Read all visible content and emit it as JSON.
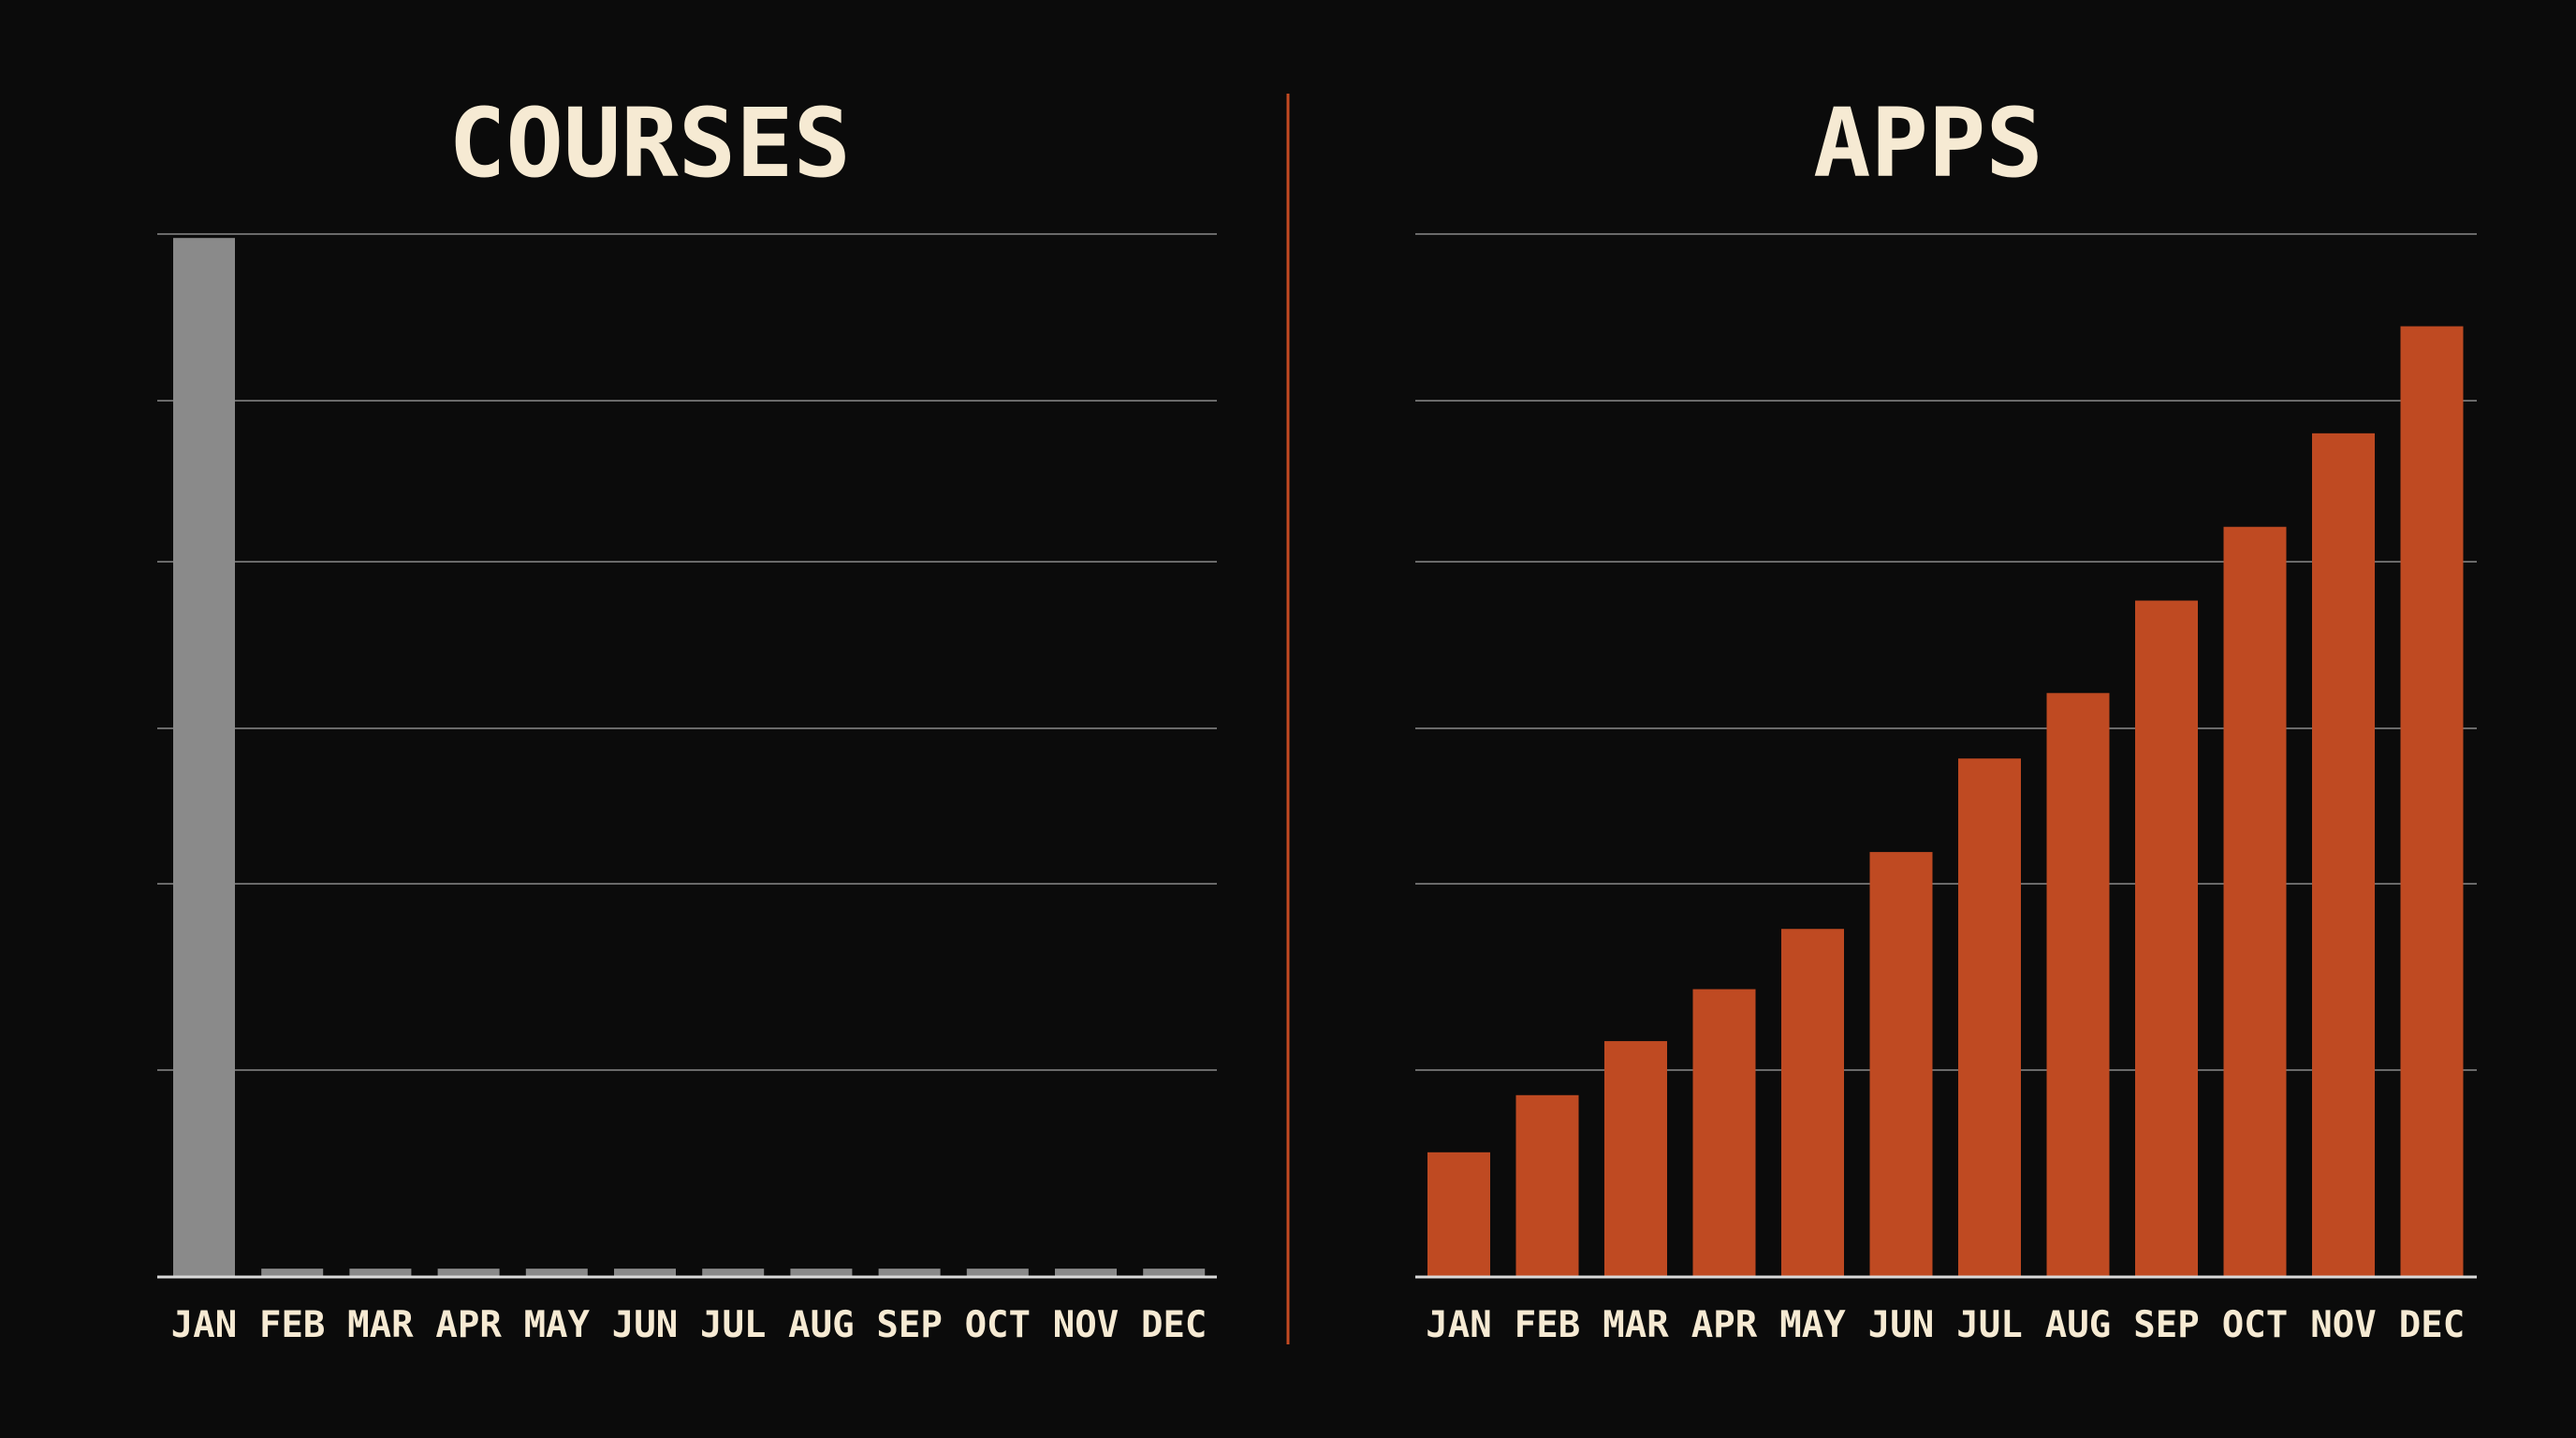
{
  "colors": {
    "background": "#0b0b0b",
    "title": "#f6ead3",
    "tick_label": "#f6ead3",
    "gridline": "#6a6a6a",
    "baseline": "#d9d9d9",
    "divider": "#c34a22",
    "courses_bar": "#8a8a8a",
    "apps_bar": "#bf4a22"
  },
  "chart_data": [
    {
      "type": "bar",
      "title": "COURSES",
      "categories": [
        "JAN",
        "FEB",
        "MAR",
        "APR",
        "MAY",
        "JUN",
        "JUL",
        "AUG",
        "SEP",
        "OCT",
        "NOV",
        "DEC"
      ],
      "values": [
        100,
        0.8,
        0.8,
        0.8,
        0.8,
        0.8,
        0.8,
        0.8,
        0.8,
        0.8,
        0.8,
        0.8
      ],
      "xlabel": "",
      "ylabel": "",
      "ylim": [
        0,
        102
      ],
      "grid": true,
      "y_tick_labels_shown": false,
      "bar_color": "#8a8a8a"
    },
    {
      "type": "bar",
      "title": "APPS",
      "categories": [
        "JAN",
        "FEB",
        "MAR",
        "APR",
        "MAY",
        "JUN",
        "JUL",
        "AUG",
        "SEP",
        "OCT",
        "NOV",
        "DEC"
      ],
      "values": [
        12,
        17.5,
        22.7,
        27.7,
        33.5,
        40.9,
        49.9,
        56.2,
        65.1,
        72.2,
        81.2,
        91.5
      ],
      "xlabel": "",
      "ylabel": "",
      "ylim": [
        0,
        102
      ],
      "grid": true,
      "y_tick_labels_shown": false,
      "bar_color": "#bf4a22"
    }
  ]
}
